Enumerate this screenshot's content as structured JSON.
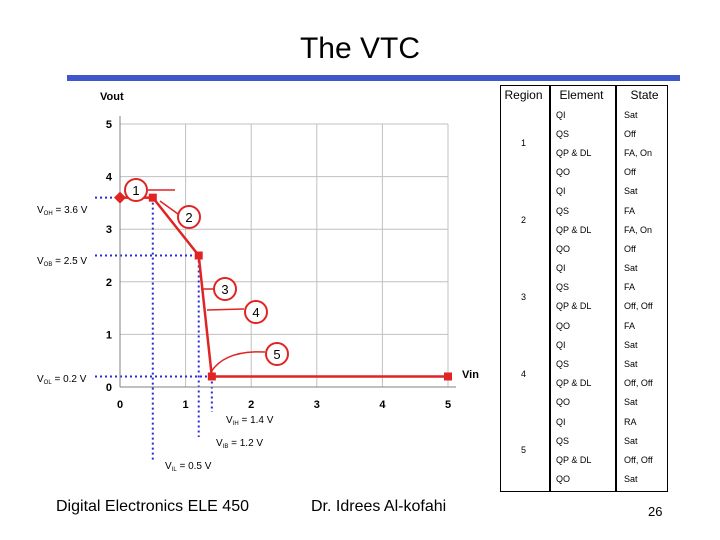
{
  "slide": {
    "title": "The VTC",
    "footer_left": "Digital Electronics ELE 450",
    "footer_mid": "Dr. Idrees Al-kofahi",
    "page_number": "26"
  },
  "colors": {
    "accent": "#3f57c9",
    "curve": "#e02424",
    "grid": "#c0c0c0",
    "guides": "#2b2bd8"
  },
  "chart_data": {
    "type": "line",
    "xlabel": "Vin",
    "ylabel": "Vout",
    "xlim": [
      0,
      5
    ],
    "ylim": [
      0,
      5
    ],
    "x_ticks": [
      "0",
      "1",
      "2",
      "3",
      "4",
      "5"
    ],
    "y_ticks": [
      "0",
      "1",
      "2",
      "3",
      "4",
      "5"
    ],
    "grid": true,
    "series": [
      {
        "x": [
          0,
          0.5,
          1.2,
          1.4,
          5
        ],
        "y": [
          3.6,
          3.6,
          2.5,
          0.2,
          0.2
        ]
      }
    ],
    "guides": [
      {
        "text": "V_OH = 3.6 V",
        "sub": "OH",
        "pre": "V",
        "post": " = 3.6 V",
        "axis": "y",
        "value": 3.6
      },
      {
        "text": "V_OB = 2.5 V",
        "sub": "OB",
        "pre": "V",
        "post": " = 2.5 V",
        "axis": "y",
        "value": 2.5
      },
      {
        "text": "V_OL = 0.2 V",
        "sub": "OL",
        "pre": "V",
        "post": " = 0.2 V",
        "axis": "y",
        "value": 0.2
      },
      {
        "text": "V_IH = 1.4 V",
        "sub": "IH",
        "pre": "V",
        "post": " = 1.4 V",
        "axis": "x",
        "value": 1.4
      },
      {
        "text": "V_IB = 1.2 V",
        "sub": "IB",
        "pre": "V",
        "post": " = 1.2 V",
        "axis": "x",
        "value": 1.2
      },
      {
        "text": "V_IL = 0.5 V",
        "sub": "IL",
        "pre": "V",
        "post": " = 0.5 V",
        "axis": "x",
        "value": 0.5
      }
    ],
    "region_labels": [
      "1",
      "2",
      "3",
      "4",
      "5"
    ]
  },
  "table": {
    "headers": [
      "Region",
      "Element",
      "State"
    ],
    "groups": [
      {
        "region": "1",
        "rows": [
          [
            "QI",
            "Sat"
          ],
          [
            "QS",
            "Off"
          ],
          [
            "QP & DL",
            "FA, On"
          ],
          [
            "QO",
            "Off"
          ]
        ]
      },
      {
        "region": "2",
        "rows": [
          [
            "QI",
            "Sat"
          ],
          [
            "QS",
            "FA"
          ],
          [
            "QP & DL",
            "FA, On"
          ],
          [
            "QO",
            "Off"
          ]
        ]
      },
      {
        "region": "3",
        "rows": [
          [
            "QI",
            "Sat"
          ],
          [
            "QS",
            "FA"
          ],
          [
            "QP & DL",
            "Off, Off"
          ],
          [
            "QO",
            "FA"
          ]
        ]
      },
      {
        "region": "4",
        "rows": [
          [
            "QI",
            "Sat"
          ],
          [
            "QS",
            "Sat"
          ],
          [
            "QP & DL",
            "Off, Off"
          ],
          [
            "QO",
            "Sat"
          ]
        ]
      },
      {
        "region": "5",
        "rows": [
          [
            "QI",
            "RA"
          ],
          [
            "QS",
            "Sat"
          ],
          [
            "QP & DL",
            "Off, Off"
          ],
          [
            "QO",
            "Sat"
          ]
        ]
      }
    ]
  }
}
